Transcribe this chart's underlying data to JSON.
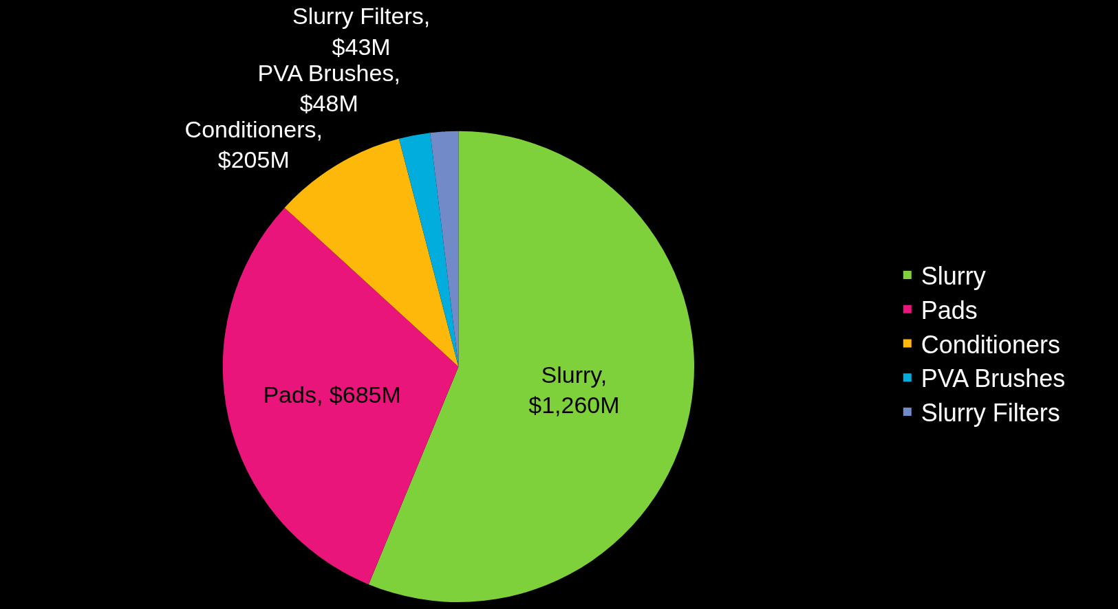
{
  "chart_data": {
    "type": "pie",
    "categories": [
      "Slurry",
      "Pads",
      "Conditioners",
      "PVA Brushes",
      "Slurry Filters"
    ],
    "values": [
      1260,
      685,
      205,
      48,
      43
    ],
    "colors": [
      "#7fd13b",
      "#ea157a",
      "#feb80a",
      "#00addc",
      "#738ac8"
    ],
    "value_labels": [
      "Slurry,\n$1,260M",
      "Pads, $685M",
      "Conditioners,\n$205M",
      "PVA Brushes,\n$48M",
      "Slurry Filters,\n$43M"
    ],
    "legend": "right"
  }
}
